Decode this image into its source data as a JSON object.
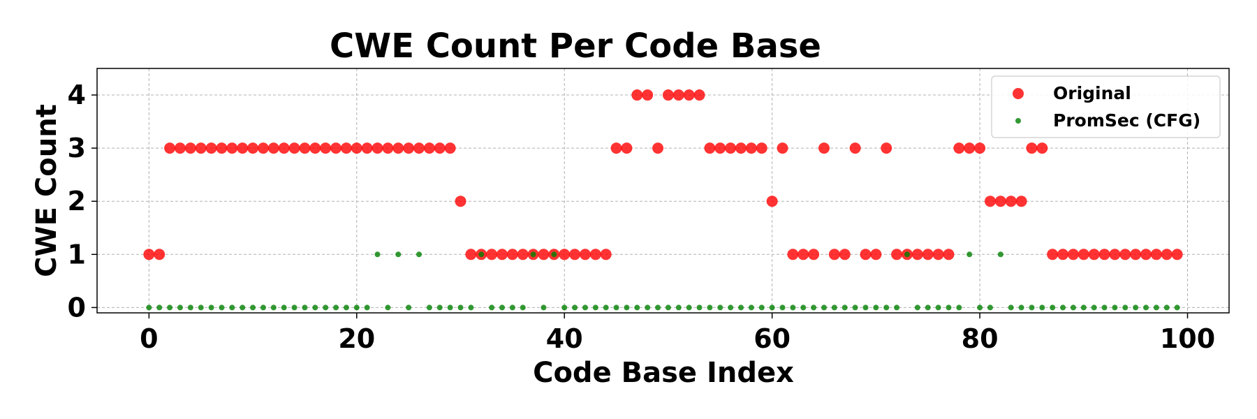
{
  "chart_data": {
    "type": "scatter",
    "title": "CWE Count Per Code Base",
    "xlabel": "Code Base Index",
    "ylabel": "CWE Count",
    "xlim": [
      -5,
      104
    ],
    "ylim": [
      -0.1,
      4.5
    ],
    "xticks": [
      0,
      20,
      40,
      60,
      80,
      100
    ],
    "yticks": [
      0,
      1,
      2,
      3,
      4
    ],
    "grid": true,
    "legend": "top-right",
    "series": [
      {
        "name": "Original",
        "color": "#ff0000",
        "x": [
          0,
          1,
          2,
          3,
          4,
          5,
          6,
          7,
          8,
          9,
          10,
          11,
          12,
          13,
          14,
          15,
          16,
          17,
          18,
          19,
          20,
          21,
          22,
          23,
          24,
          25,
          26,
          27,
          28,
          29,
          30,
          31,
          32,
          33,
          34,
          35,
          36,
          37,
          38,
          39,
          40,
          41,
          42,
          43,
          44,
          45,
          46,
          47,
          48,
          49,
          50,
          51,
          52,
          53,
          54,
          55,
          56,
          57,
          58,
          59,
          60,
          61,
          62,
          63,
          64,
          65,
          66,
          67,
          68,
          69,
          70,
          71,
          72,
          73,
          74,
          75,
          76,
          77,
          78,
          79,
          80,
          81,
          82,
          83,
          84,
          85,
          86,
          87,
          88,
          89,
          90,
          91,
          92,
          93,
          94,
          95,
          96,
          97,
          98,
          99
        ],
        "y": [
          1,
          1,
          3,
          3,
          3,
          3,
          3,
          3,
          3,
          3,
          3,
          3,
          3,
          3,
          3,
          3,
          3,
          3,
          3,
          3,
          3,
          3,
          3,
          3,
          3,
          3,
          3,
          3,
          3,
          3,
          2,
          1,
          1,
          1,
          1,
          1,
          1,
          1,
          1,
          1,
          1,
          1,
          1,
          1,
          1,
          3,
          3,
          4,
          4,
          3,
          4,
          4,
          4,
          4,
          3,
          3,
          3,
          3,
          3,
          3,
          2,
          3,
          1,
          1,
          1,
          3,
          1,
          1,
          3,
          1,
          1,
          3,
          1,
          1,
          1,
          1,
          1,
          1,
          3,
          3,
          3,
          2,
          2,
          2,
          2,
          3,
          3,
          1,
          1,
          1,
          1,
          1,
          1,
          1,
          1,
          1,
          1,
          1,
          1,
          1
        ]
      },
      {
        "name": "PromSec (CFG)",
        "color": "#008000",
        "x": [
          0,
          1,
          2,
          3,
          4,
          5,
          6,
          7,
          8,
          9,
          10,
          11,
          12,
          13,
          14,
          15,
          16,
          17,
          18,
          19,
          20,
          21,
          22,
          23,
          24,
          25,
          26,
          27,
          28,
          29,
          30,
          31,
          32,
          33,
          34,
          35,
          36,
          37,
          38,
          39,
          40,
          41,
          42,
          43,
          44,
          45,
          46,
          47,
          48,
          49,
          50,
          51,
          52,
          53,
          54,
          55,
          56,
          57,
          58,
          59,
          60,
          61,
          62,
          63,
          64,
          65,
          66,
          67,
          68,
          69,
          70,
          71,
          72,
          73,
          74,
          75,
          76,
          77,
          78,
          79,
          80,
          81,
          82,
          83,
          84,
          85,
          86,
          87,
          88,
          89,
          90,
          91,
          92,
          93,
          94,
          95,
          96,
          97,
          98,
          99
        ],
        "y": [
          0,
          0,
          0,
          0,
          0,
          0,
          0,
          0,
          0,
          0,
          0,
          0,
          0,
          0,
          0,
          0,
          0,
          0,
          0,
          0,
          0,
          0,
          1,
          0,
          1,
          0,
          1,
          0,
          0,
          0,
          0,
          0,
          1,
          0,
          0,
          0,
          0,
          1,
          0,
          1,
          0,
          0,
          0,
          0,
          0,
          0,
          0,
          0,
          0,
          0,
          0,
          0,
          0,
          0,
          0,
          0,
          0,
          0,
          0,
          0,
          0,
          0,
          0,
          0,
          0,
          0,
          0,
          0,
          0,
          0,
          0,
          0,
          0,
          1,
          0,
          0,
          0,
          0,
          0,
          1,
          0,
          0,
          1,
          0,
          0,
          0,
          0,
          0,
          0,
          0,
          0,
          0,
          0,
          0,
          0,
          0,
          0,
          0,
          0,
          0
        ]
      }
    ]
  }
}
